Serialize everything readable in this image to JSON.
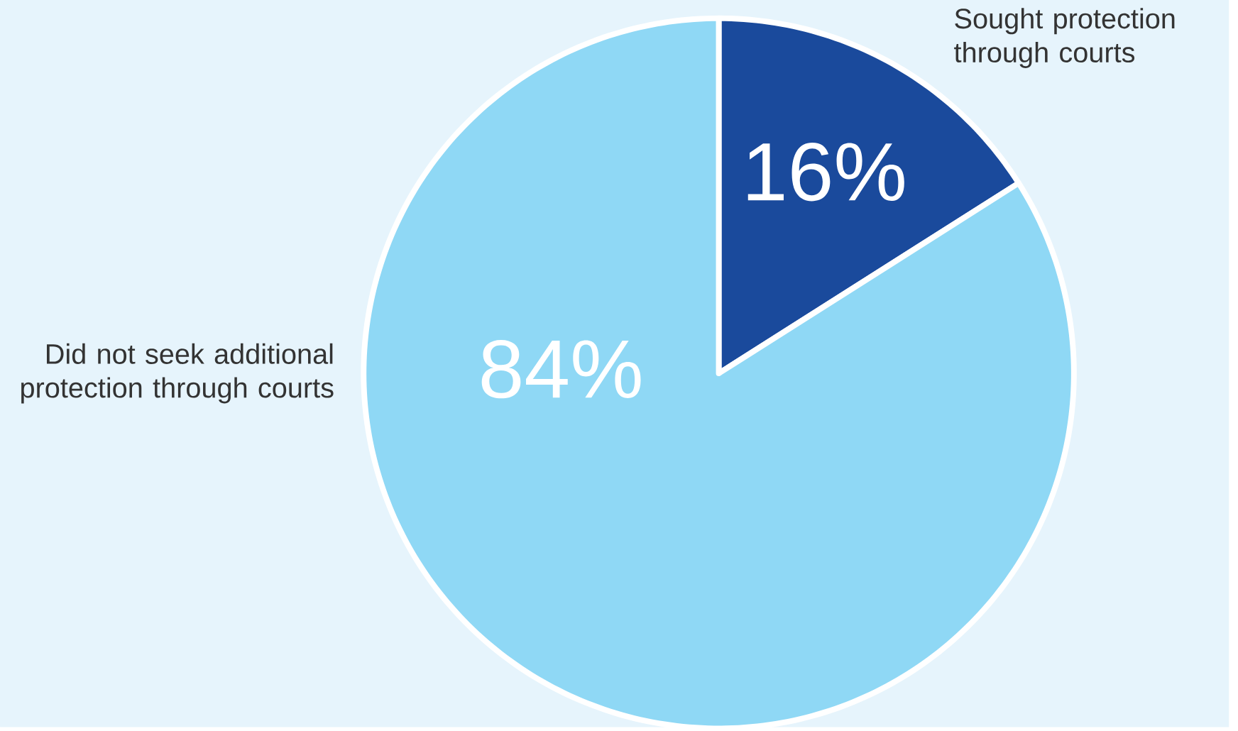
{
  "chart_data": {
    "type": "pie",
    "categories": [
      "Sought protection through courts",
      "Did not seek additional protection through courts"
    ],
    "values": [
      16,
      84
    ],
    "colors": [
      "#1a4a9c",
      "#8fd8f5"
    ],
    "value_labels": [
      "16%",
      "84%"
    ]
  }
}
